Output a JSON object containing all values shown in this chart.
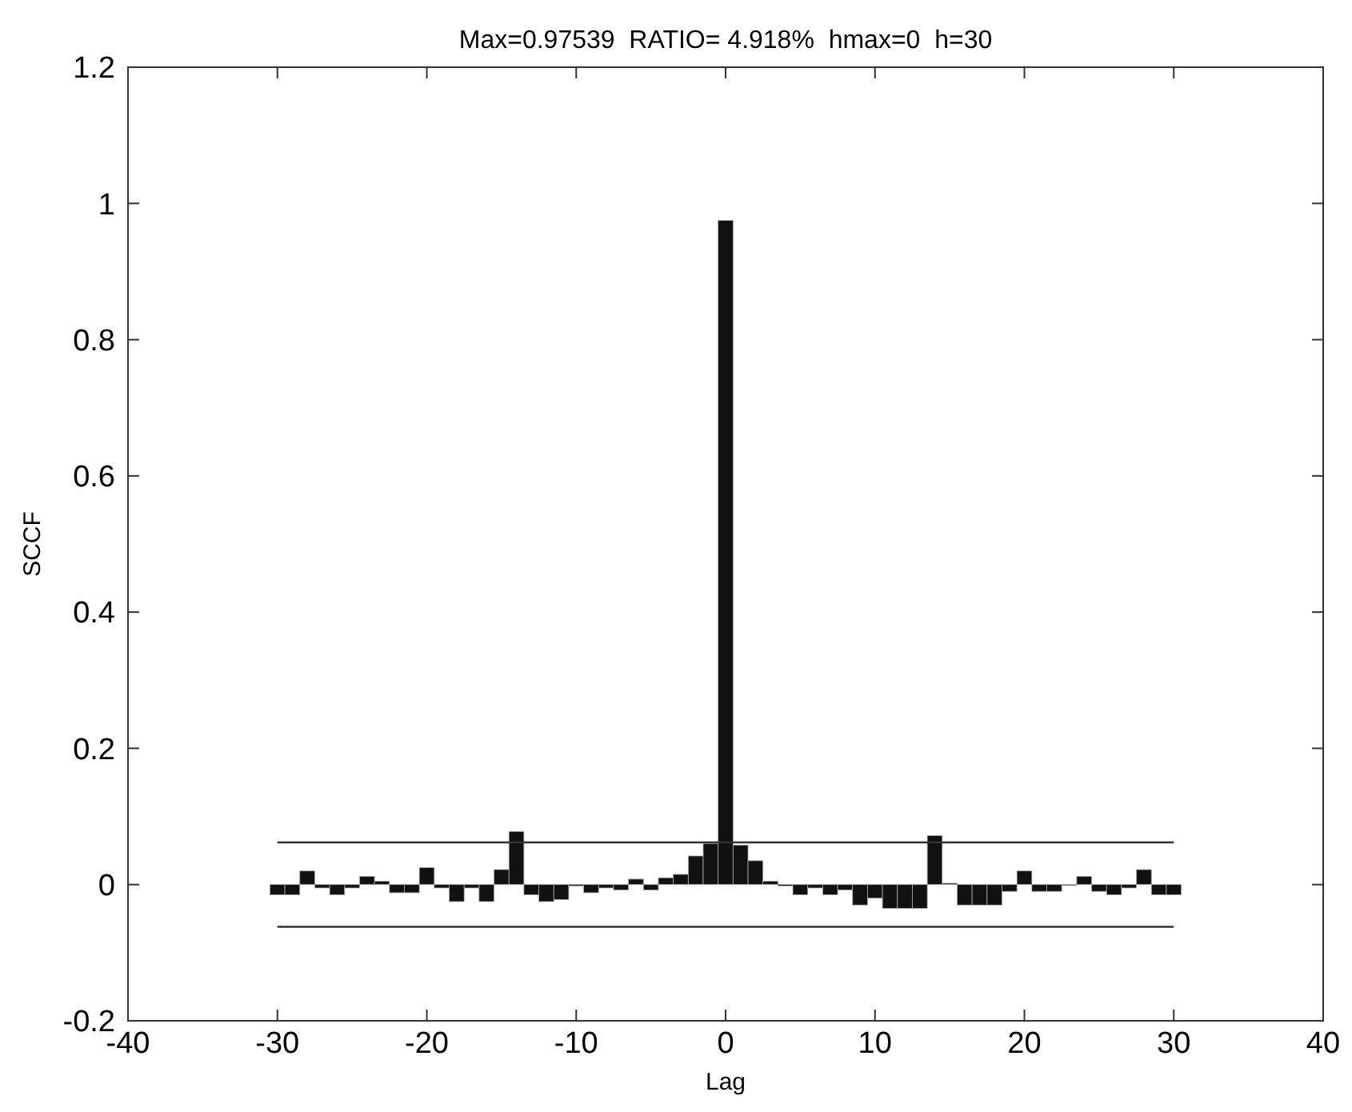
{
  "chart_data": {
    "type": "bar",
    "title": "Max=0.97539  RATIO= 4.918%  hmax=0  h=30",
    "xlabel": "Lag",
    "ylabel": "SCCF",
    "xlim": [
      -40,
      40
    ],
    "xticks": [
      -40,
      -30,
      -20,
      -10,
      0,
      10,
      20,
      30,
      40
    ],
    "ylim": [
      -0.2,
      1.2
    ],
    "yticks": [
      -0.2,
      0,
      0.2,
      0.4,
      0.6,
      0.8,
      1,
      1.2
    ],
    "grid": false,
    "series": [
      {
        "color": "#111111",
        "x": [
          -30,
          -29,
          -28,
          -27,
          -26,
          -25,
          -24,
          -23,
          -22,
          -21,
          -20,
          -19,
          -18,
          -17,
          -16,
          -15,
          -14,
          -13,
          -12,
          -11,
          -10,
          -9,
          -8,
          -7,
          -6,
          -5,
          -4,
          -3,
          -2,
          -1,
          0,
          1,
          2,
          3,
          4,
          5,
          6,
          7,
          8,
          9,
          10,
          11,
          12,
          13,
          14,
          15,
          16,
          17,
          18,
          19,
          20,
          21,
          22,
          23,
          24,
          25,
          26,
          27,
          28,
          29,
          30
        ],
        "values": [
          -0.015,
          -0.015,
          0.02,
          -0.005,
          -0.015,
          -0.005,
          0.012,
          0.005,
          -0.012,
          -0.012,
          0.025,
          -0.005,
          -0.025,
          -0.005,
          -0.025,
          0.022,
          0.078,
          -0.015,
          -0.025,
          -0.022,
          -0.002,
          -0.012,
          -0.005,
          -0.008,
          0.008,
          -0.008,
          0.01,
          0.015,
          0.042,
          0.06,
          0.975,
          0.058,
          0.035,
          0.005,
          -0.002,
          -0.015,
          -0.005,
          -0.015,
          -0.008,
          -0.03,
          -0.02,
          -0.035,
          -0.035,
          -0.035,
          0.072,
          0.002,
          -0.03,
          -0.03,
          -0.03,
          -0.01,
          0.02,
          -0.01,
          -0.01,
          0,
          0.012,
          -0.01,
          -0.015,
          -0.005,
          0.022,
          -0.015,
          -0.015
        ]
      },
      {
        "type": "line",
        "color": "#333333",
        "x": [
          -30,
          30
        ],
        "values": [
          0.062,
          0.062
        ]
      },
      {
        "type": "line",
        "color": "#333333",
        "x": [
          -30,
          30
        ],
        "values": [
          -0.062,
          -0.062
        ]
      }
    ]
  }
}
